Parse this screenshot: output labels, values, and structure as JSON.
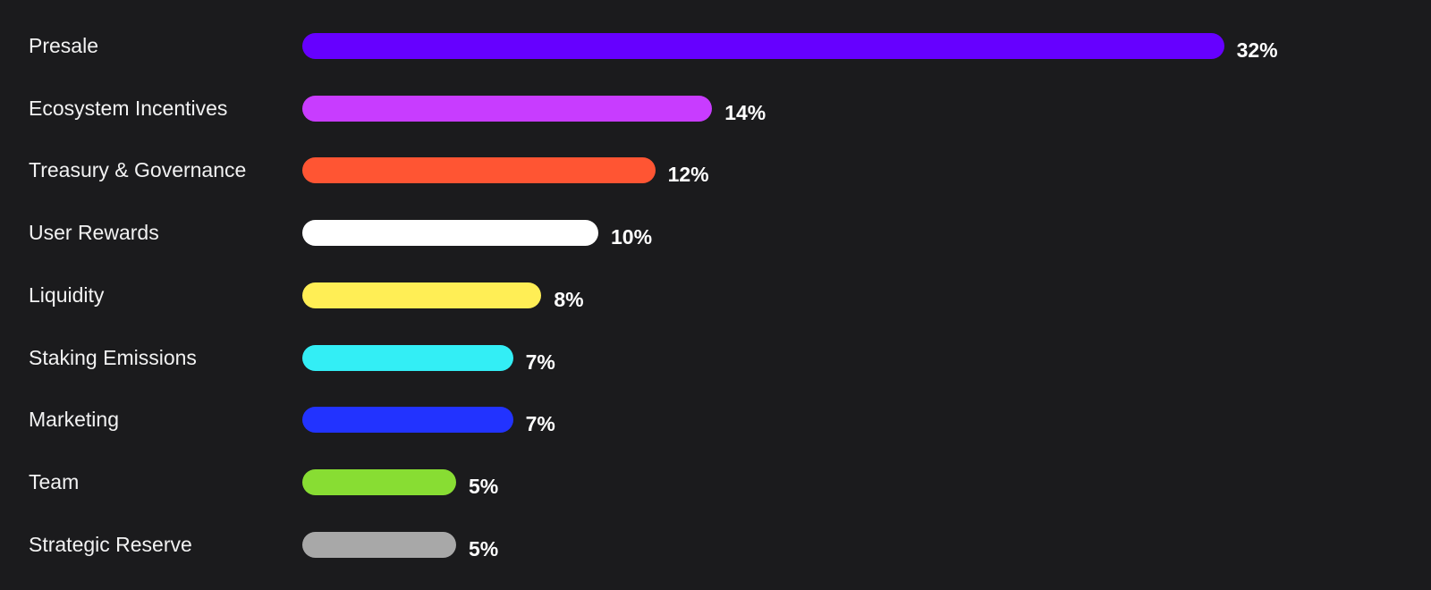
{
  "chart_data": {
    "type": "bar",
    "orientation": "horizontal",
    "categories": [
      "Presale",
      "Ecosystem Incentives",
      "Treasury & Governance",
      "User Rewards",
      "Liquidity",
      "Staking Emissions",
      "Marketing",
      "Team",
      "Strategic Reserve"
    ],
    "values": [
      32,
      14,
      12,
      10,
      8,
      7,
      7,
      5,
      5
    ],
    "value_labels": [
      "32%",
      "14%",
      "12%",
      "10%",
      "8%",
      "7%",
      "7%",
      "5%",
      "5%"
    ],
    "colors": [
      "#6600ff",
      "#c83cff",
      "#ff5533",
      "#ffffff",
      "#ffee55",
      "#33eef5",
      "#2233ff",
      "#88dd33",
      "#a8a8a8"
    ],
    "unit": "%",
    "grid": false,
    "background": "#1b1b1d"
  }
}
